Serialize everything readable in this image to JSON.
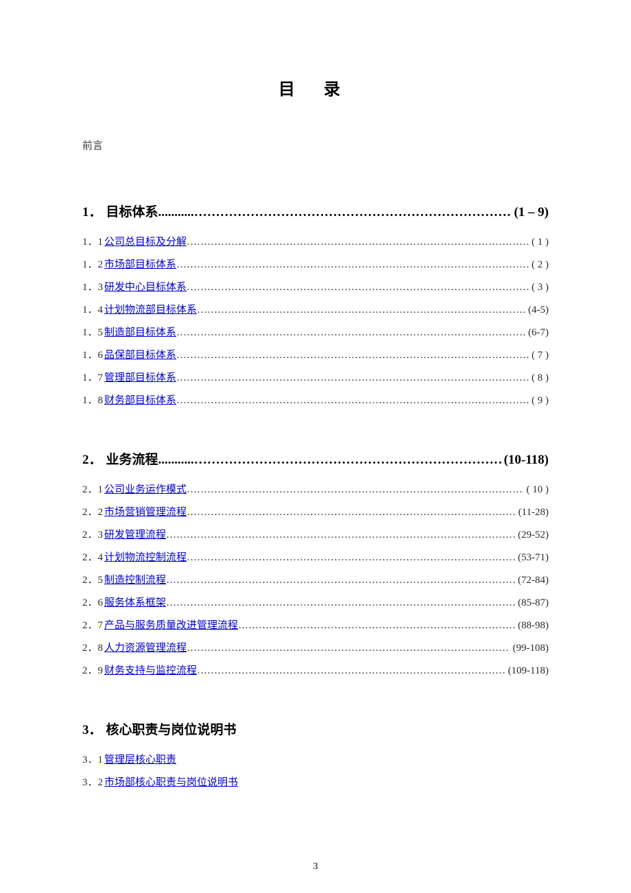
{
  "title": "目  录",
  "preface": "前言",
  "page_number": "3",
  "sections": [
    {
      "number": "1．",
      "title": "目标体系",
      "pages": "(1 – 9)",
      "has_leader": true,
      "items": [
        {
          "idx": "1．1 ",
          "label": "公司总目标及分解",
          "page": "( 1 )",
          "leader": true
        },
        {
          "idx": "1．2 ",
          "label": "市场部目标体系",
          "page": "( 2 )",
          "leader": true
        },
        {
          "idx": "1．3 ",
          "label": "研发中心目标体系",
          "page": "( 3 )",
          "leader": true
        },
        {
          "idx": "1．4 ",
          "label": "计划物流部目标体系",
          "page": "(4-5)",
          "leader": true
        },
        {
          "idx": "1．5 ",
          "label": "制造部目标体系",
          "page": "(6-7)",
          "leader": true
        },
        {
          "idx": "1．6 ",
          "label": "品保部目标体系",
          "page": "( 7 )",
          "leader": true
        },
        {
          "idx": "1．7 ",
          "label": "管理部目标体系",
          "page": "( 8 )",
          "leader": true
        },
        {
          "idx": "1．8 ",
          "label": "财务部目标体系",
          "page": "( 9 )",
          "leader": true
        }
      ]
    },
    {
      "number": "2．",
      "title": "业务流程",
      "pages": "(10-118)",
      "has_leader": true,
      "items": [
        {
          "idx": "2．1 ",
          "label": "公司业务运作模式",
          "page": "( 10 )",
          "leader": true
        },
        {
          "idx": "2．2 ",
          "label": "市场营销管理流程",
          "page": "(11-28)",
          "leader": true
        },
        {
          "idx": "2．3 ",
          "label": "研发管理流程",
          "page": "(29-52)",
          "leader": true
        },
        {
          "idx": "2．4 ",
          "label": "计划物流控制流程",
          "page": "(53-71)",
          "leader": true
        },
        {
          "idx": "2．5 ",
          "label": "制造控制流程",
          "page": "(72-84)",
          "leader": true
        },
        {
          "idx": "2．6 ",
          "label": "服务体系框架",
          "page": "(85-87)",
          "leader": true
        },
        {
          "idx": "2．7 ",
          "label": "产品与服务质量改进管理流程",
          "page": "(88-98)",
          "leader": true
        },
        {
          "idx": "2．8 ",
          "label": "人力资源管理流程",
          "page": "(99-108)",
          "leader": true
        },
        {
          "idx": "2．9 ",
          "label": "财务支持与监控流程",
          "page": "(109-118)",
          "leader": true
        }
      ]
    },
    {
      "number": "3．",
      "title": "核心职责与岗位说明书",
      "pages": "",
      "has_leader": false,
      "items": [
        {
          "idx": "3．1 ",
          "label": "管理层核心职责",
          "page": "",
          "leader": false
        },
        {
          "idx": "3．2 ",
          "label": "市场部核心职责与岗位说明书",
          "page": "",
          "leader": false
        }
      ]
    }
  ]
}
